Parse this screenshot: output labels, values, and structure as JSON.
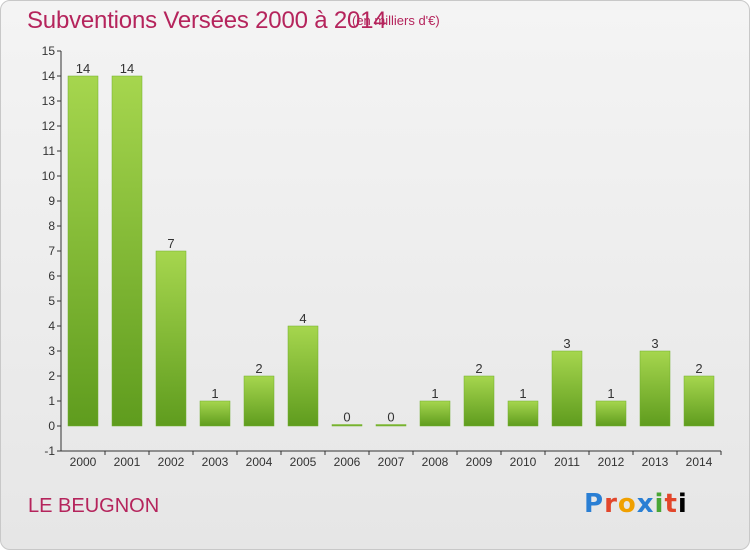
{
  "header": {
    "title": "Subventions Versées 2000 à 2014",
    "unit": "(en milliers d'€)"
  },
  "footer": {
    "commune": "LE BEUGNON",
    "logo_letters": [
      "P",
      "r",
      "o",
      "x",
      "i",
      "t",
      "i"
    ]
  },
  "colors": {
    "title": "#b5245c",
    "bar_top": "#a6d64e",
    "bar_bottom": "#5f9c1e",
    "axis": "#333333"
  },
  "chart_data": {
    "type": "bar",
    "title": "Subventions Versées 2000 à 2014",
    "subtitle": "(en milliers d'€)",
    "xlabel": "",
    "ylabel": "",
    "categories": [
      "2000",
      "2001",
      "2002",
      "2003",
      "2004",
      "2005",
      "2006",
      "2007",
      "2008",
      "2009",
      "2010",
      "2011",
      "2012",
      "2013",
      "2014"
    ],
    "values": [
      14,
      14,
      7,
      1,
      2,
      4,
      0,
      0,
      1,
      2,
      1,
      3,
      1,
      3,
      2
    ],
    "data_labels": [
      "14",
      "14",
      "7",
      "1",
      "2",
      "4",
      "0",
      "0",
      "1",
      "2",
      "1",
      "3",
      "1",
      "3",
      "2"
    ],
    "ylim": [
      -1,
      15
    ],
    "yticks": [
      -1,
      0,
      1,
      2,
      3,
      4,
      5,
      6,
      7,
      8,
      9,
      10,
      11,
      12,
      13,
      14,
      15
    ],
    "ytick_labels": [
      "-1",
      "0",
      "1",
      "2",
      "3",
      "4",
      "5",
      "6",
      "7",
      "8",
      "9",
      "10",
      "11",
      "12",
      "13",
      "14",
      "15"
    ],
    "grid": false,
    "legend": "none"
  }
}
